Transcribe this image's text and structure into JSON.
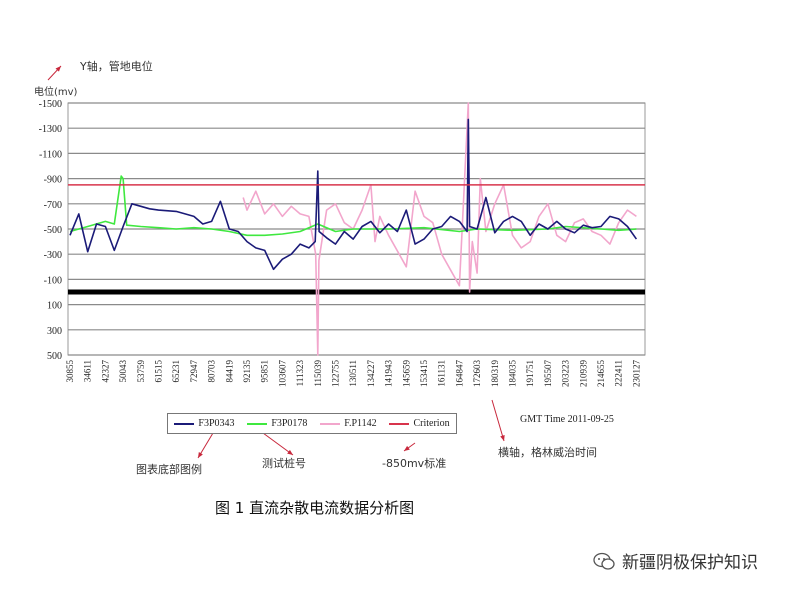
{
  "annotations": {
    "y_axis_note": "Y轴，管地电位",
    "legend_note": "图表底部图例",
    "series_note": "测试桩号",
    "criterion_note": "-850mv标准",
    "x_axis_note": "横轴，格林威治时间"
  },
  "caption": "图 1  直流杂散电流数据分析图",
  "watermark": {
    "icon": "wechat-icon",
    "text": "新疆阴极保护知识"
  },
  "colors": {
    "F3P0343": "#1b1b78",
    "F3P0178": "#3fe83f",
    "F.P1142": "#f2a6cc",
    "Criterion": "#d8344c",
    "zero_line": "#000000",
    "annotation_arrow": "#c8283c"
  },
  "chart_data": {
    "type": "line",
    "title": "",
    "ylabel": "电位(mv)",
    "xlabel": "GMT Time 2011-09-25",
    "ylim": [
      -1500,
      500
    ],
    "y_inverted": true,
    "yticks": [
      -1500,
      -1300,
      -1100,
      -900,
      -700,
      -500,
      -300,
      -100,
      100,
      300,
      500
    ],
    "xticks": [
      30855,
      34611,
      42327,
      50043,
      53759,
      61515,
      65231,
      72947,
      80703,
      84419,
      92135,
      95851,
      103607,
      111323,
      115039,
      122755,
      130511,
      134227,
      141943,
      145659,
      153415,
      161131,
      164847,
      172603,
      180319,
      184035,
      191751,
      195507,
      203223,
      210939,
      214655,
      222411,
      230127
    ],
    "grid": true,
    "legend_placement": "bottom",
    "reference_lines": [
      {
        "name": "Criterion",
        "y": -850
      },
      {
        "y": 0,
        "style": "thick-black"
      }
    ],
    "series": [
      {
        "name": "F3P0343",
        "points": [
          [
            30855,
            -450
          ],
          [
            32733,
            -620
          ],
          [
            34611,
            -320
          ],
          [
            38469,
            -540
          ],
          [
            42327,
            -520
          ],
          [
            46185,
            -330
          ],
          [
            50043,
            -520
          ],
          [
            51901,
            -700
          ],
          [
            53759,
            -680
          ],
          [
            57637,
            -660
          ],
          [
            61515,
            -650
          ],
          [
            65231,
            -640
          ],
          [
            69089,
            -620
          ],
          [
            72947,
            -600
          ],
          [
            76825,
            -540
          ],
          [
            80703,
            -560
          ],
          [
            82561,
            -720
          ],
          [
            84419,
            -500
          ],
          [
            88277,
            -480
          ],
          [
            92135,
            -400
          ],
          [
            93993,
            -350
          ],
          [
            95851,
            -330
          ],
          [
            99729,
            -180
          ],
          [
            103607,
            -260
          ],
          [
            107465,
            -300
          ],
          [
            111323,
            -380
          ],
          [
            113181,
            -350
          ],
          [
            114500,
            -400
          ],
          [
            115039,
            -960
          ],
          [
            115600,
            -480
          ],
          [
            118897,
            -430
          ],
          [
            122755,
            -380
          ],
          [
            126633,
            -480
          ],
          [
            130511,
            -420
          ],
          [
            132369,
            -520
          ],
          [
            134227,
            -560
          ],
          [
            138085,
            -470
          ],
          [
            141943,
            -540
          ],
          [
            143801,
            -480
          ],
          [
            145659,
            -650
          ],
          [
            149537,
            -380
          ],
          [
            153415,
            -420
          ],
          [
            157273,
            -500
          ],
          [
            161131,
            -520
          ],
          [
            162989,
            -600
          ],
          [
            164847,
            -560
          ],
          [
            168200,
            -480
          ],
          [
            168725,
            -1370
          ],
          [
            169300,
            -520
          ],
          [
            172603,
            -500
          ],
          [
            176461,
            -750
          ],
          [
            180319,
            -470
          ],
          [
            182177,
            -560
          ],
          [
            184035,
            -600
          ],
          [
            187893,
            -560
          ],
          [
            191751,
            -450
          ],
          [
            193629,
            -540
          ],
          [
            195507,
            -500
          ],
          [
            199365,
            -560
          ],
          [
            203223,
            -500
          ],
          [
            207081,
            -470
          ],
          [
            210939,
            -530
          ],
          [
            212797,
            -510
          ],
          [
            214655,
            -520
          ],
          [
            218533,
            -600
          ],
          [
            222411,
            -580
          ],
          [
            226269,
            -520
          ],
          [
            230127,
            -420
          ]
        ]
      },
      {
        "name": "F3P0178",
        "points": [
          [
            30855,
            -480
          ],
          [
            34611,
            -520
          ],
          [
            42327,
            -560
          ],
          [
            46185,
            -540
          ],
          [
            49200,
            -920
          ],
          [
            50043,
            -900
          ],
          [
            50800,
            -530
          ],
          [
            53759,
            -520
          ],
          [
            61515,
            -510
          ],
          [
            65231,
            -500
          ],
          [
            72947,
            -510
          ],
          [
            80703,
            -500
          ],
          [
            84419,
            -480
          ],
          [
            92135,
            -450
          ],
          [
            95851,
            -450
          ],
          [
            103607,
            -460
          ],
          [
            111323,
            -480
          ],
          [
            115039,
            -540
          ],
          [
            122755,
            -480
          ],
          [
            130511,
            -500
          ],
          [
            141943,
            -500
          ],
          [
            153415,
            -510
          ],
          [
            164847,
            -480
          ],
          [
            172603,
            -500
          ],
          [
            184035,
            -490
          ],
          [
            195507,
            -500
          ],
          [
            203223,
            -520
          ],
          [
            214655,
            -500
          ],
          [
            222411,
            -490
          ],
          [
            230127,
            -500
          ]
        ]
      },
      {
        "name": "F.P1142",
        "points": [
          [
            90500,
            -750
          ],
          [
            92135,
            -650
          ],
          [
            93993,
            -800
          ],
          [
            95851,
            -620
          ],
          [
            99729,
            -700
          ],
          [
            103607,
            -600
          ],
          [
            107465,
            -680
          ],
          [
            111323,
            -620
          ],
          [
            113181,
            -600
          ],
          [
            114600,
            -300
          ],
          [
            115039,
            500
          ],
          [
            115500,
            -250
          ],
          [
            118897,
            -650
          ],
          [
            122755,
            -700
          ],
          [
            126633,
            -550
          ],
          [
            130511,
            -500
          ],
          [
            132369,
            -650
          ],
          [
            134227,
            -850
          ],
          [
            136000,
            -400
          ],
          [
            138085,
            -600
          ],
          [
            141943,
            -450
          ],
          [
            145659,
            -200
          ],
          [
            149537,
            -800
          ],
          [
            153415,
            -600
          ],
          [
            157273,
            -550
          ],
          [
            161131,
            -300
          ],
          [
            164847,
            -50
          ],
          [
            168725,
            -1500
          ],
          [
            169300,
            0
          ],
          [
            170500,
            -400
          ],
          [
            172603,
            -150
          ],
          [
            174000,
            -900
          ],
          [
            176461,
            -480
          ],
          [
            180319,
            -700
          ],
          [
            182177,
            -850
          ],
          [
            184035,
            -450
          ],
          [
            187893,
            -350
          ],
          [
            191751,
            -400
          ],
          [
            193629,
            -600
          ],
          [
            195507,
            -700
          ],
          [
            199365,
            -450
          ],
          [
            203223,
            -400
          ],
          [
            207081,
            -550
          ],
          [
            210939,
            -580
          ],
          [
            212797,
            -480
          ],
          [
            214655,
            -450
          ],
          [
            218533,
            -380
          ],
          [
            222411,
            -550
          ],
          [
            226269,
            -650
          ],
          [
            230127,
            -600
          ]
        ]
      },
      {
        "name": "Criterion",
        "points": [
          [
            30855,
            -850
          ],
          [
            230127,
            -850
          ]
        ]
      }
    ]
  }
}
